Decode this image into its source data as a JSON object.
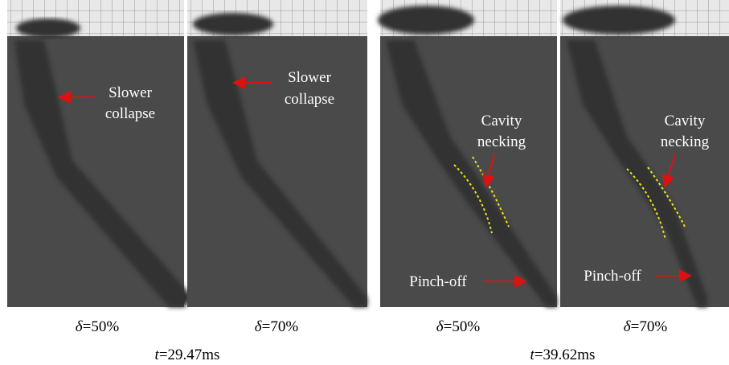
{
  "panels": [
    {
      "annotations": [
        {
          "lines": [
            "Slower",
            "collapse"
          ]
        }
      ],
      "caption": {
        "symbol": "δ",
        "text": "=50%"
      }
    },
    {
      "annotations": [
        {
          "lines": [
            "Slower",
            "collapse"
          ]
        }
      ],
      "caption": {
        "symbol": "δ",
        "text": "=70%"
      }
    },
    {
      "annotations": [
        {
          "lines": [
            "Cavity",
            "necking"
          ]
        },
        {
          "lines": [
            "Pinch-off"
          ]
        }
      ],
      "caption": {
        "symbol": "δ",
        "text": "=50%"
      }
    },
    {
      "annotations": [
        {
          "lines": [
            "Cavity",
            "necking"
          ]
        },
        {
          "lines": [
            "Pinch-off"
          ]
        }
      ],
      "caption": {
        "symbol": "δ",
        "text": "=70%"
      }
    }
  ],
  "time_labels": [
    {
      "symbol": "t",
      "text": "=29.47ms"
    },
    {
      "symbol": "t",
      "text": "=39.62ms"
    }
  ]
}
